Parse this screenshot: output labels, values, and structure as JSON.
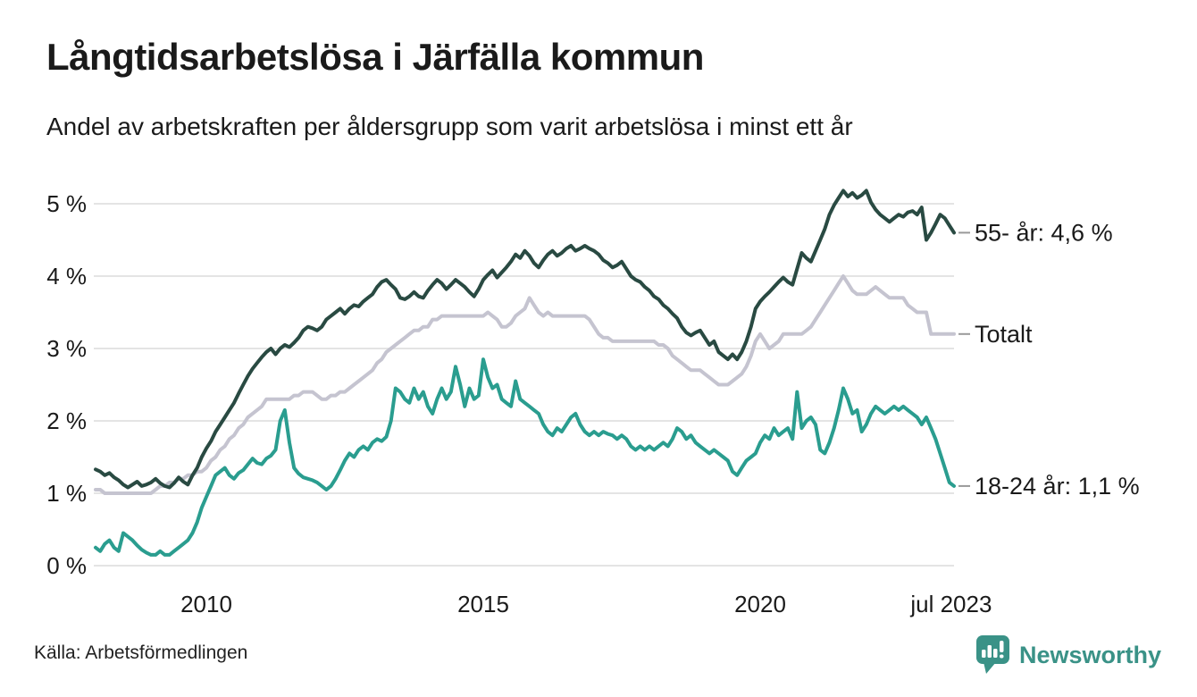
{
  "title": "Långtidsarbetslösa i Järfälla kommun",
  "subtitle": "Andel av arbetskraften per åldersgrupp som varit arbetslösa i minst ett år",
  "source": "Källa: Arbetsförmedlingen",
  "logo": {
    "text": "Newsworthy",
    "color": "#3a9287"
  },
  "chart_data": {
    "type": "line",
    "title": "Långtidsarbetslösa i Järfälla kommun",
    "subtitle": "Andel av arbetskraften per åldersgrupp som varit arbetslösa i minst ett år",
    "unit": "%",
    "x_start": "2008-01",
    "x_end": "2023-07",
    "x_interval": "monthly",
    "ylim": [
      0,
      5.5
    ],
    "grid": "horizontal",
    "grid_color": "#e4e4e4",
    "label_color": "#1a1a1a",
    "connector_color": "#999999",
    "y_ticks": [
      "0 %",
      "1 %",
      "2 %",
      "3 %",
      "4 %",
      "5 %"
    ],
    "x_ticks": [
      {
        "label": "2010",
        "t": 2010.0
      },
      {
        "label": "2015",
        "t": 2015.0
      },
      {
        "label": "2020",
        "t": 2020.0
      },
      {
        "label": "jul 2023",
        "t": 2023.45
      }
    ],
    "series": [
      {
        "id": "totalt",
        "name": "Totalt",
        "end_label": "Totalt",
        "end_value": 3.2,
        "color": "#c5c4d0",
        "values": [
          1.05,
          1.05,
          1.0,
          1.0,
          1.0,
          1.0,
          1.0,
          1.0,
          1.0,
          1.0,
          1.0,
          1.0,
          1.0,
          1.05,
          1.1,
          1.1,
          1.15,
          1.15,
          1.2,
          1.2,
          1.25,
          1.25,
          1.3,
          1.3,
          1.35,
          1.45,
          1.5,
          1.6,
          1.65,
          1.75,
          1.8,
          1.9,
          1.95,
          2.05,
          2.1,
          2.15,
          2.2,
          2.3,
          2.3,
          2.3,
          2.3,
          2.3,
          2.3,
          2.35,
          2.35,
          2.4,
          2.4,
          2.4,
          2.35,
          2.3,
          2.3,
          2.35,
          2.35,
          2.4,
          2.4,
          2.45,
          2.5,
          2.55,
          2.6,
          2.65,
          2.7,
          2.8,
          2.85,
          2.95,
          3.0,
          3.05,
          3.1,
          3.15,
          3.2,
          3.25,
          3.25,
          3.3,
          3.3,
          3.4,
          3.4,
          3.45,
          3.45,
          3.45,
          3.45,
          3.45,
          3.45,
          3.45,
          3.45,
          3.45,
          3.45,
          3.5,
          3.45,
          3.4,
          3.3,
          3.3,
          3.35,
          3.45,
          3.5,
          3.55,
          3.7,
          3.6,
          3.5,
          3.45,
          3.5,
          3.45,
          3.45,
          3.45,
          3.45,
          3.45,
          3.45,
          3.45,
          3.45,
          3.4,
          3.3,
          3.2,
          3.15,
          3.15,
          3.1,
          3.1,
          3.1,
          3.1,
          3.1,
          3.1,
          3.1,
          3.1,
          3.1,
          3.1,
          3.05,
          3.05,
          3.0,
          2.9,
          2.85,
          2.8,
          2.75,
          2.7,
          2.7,
          2.7,
          2.65,
          2.6,
          2.55,
          2.5,
          2.5,
          2.5,
          2.55,
          2.6,
          2.65,
          2.75,
          2.9,
          3.1,
          3.2,
          3.1,
          3.0,
          3.05,
          3.1,
          3.2,
          3.2,
          3.2,
          3.2,
          3.2,
          3.25,
          3.3,
          3.4,
          3.5,
          3.6,
          3.7,
          3.8,
          3.9,
          4.0,
          3.9,
          3.8,
          3.75,
          3.75,
          3.75,
          3.8,
          3.85,
          3.8,
          3.75,
          3.7,
          3.7,
          3.7,
          3.7,
          3.6,
          3.55,
          3.5,
          3.5,
          3.5,
          3.2,
          3.2,
          3.2,
          3.2,
          3.2,
          3.2
        ]
      },
      {
        "id": "55-ar",
        "name": "55- år",
        "end_label": "55- år: 4,6 %",
        "end_value": 4.6,
        "color": "#294a42",
        "values": [
          1.33,
          1.3,
          1.25,
          1.28,
          1.22,
          1.18,
          1.12,
          1.08,
          1.12,
          1.16,
          1.1,
          1.12,
          1.15,
          1.2,
          1.14,
          1.1,
          1.08,
          1.14,
          1.22,
          1.16,
          1.12,
          1.25,
          1.35,
          1.5,
          1.62,
          1.72,
          1.85,
          1.95,
          2.05,
          2.15,
          2.25,
          2.38,
          2.5,
          2.62,
          2.72,
          2.8,
          2.88,
          2.95,
          3.0,
          2.92,
          3.0,
          3.05,
          3.02,
          3.08,
          3.15,
          3.25,
          3.3,
          3.28,
          3.25,
          3.3,
          3.4,
          3.45,
          3.5,
          3.55,
          3.48,
          3.55,
          3.6,
          3.58,
          3.65,
          3.7,
          3.75,
          3.85,
          3.92,
          3.95,
          3.88,
          3.82,
          3.7,
          3.68,
          3.72,
          3.78,
          3.72,
          3.7,
          3.8,
          3.88,
          3.95,
          3.9,
          3.82,
          3.88,
          3.95,
          3.9,
          3.85,
          3.78,
          3.72,
          3.82,
          3.95,
          4.02,
          4.08,
          3.98,
          4.05,
          4.12,
          4.2,
          4.3,
          4.25,
          4.35,
          4.28,
          4.18,
          4.12,
          4.22,
          4.3,
          4.35,
          4.28,
          4.32,
          4.38,
          4.42,
          4.35,
          4.38,
          4.42,
          4.38,
          4.35,
          4.3,
          4.22,
          4.18,
          4.12,
          4.15,
          4.2,
          4.1,
          4.0,
          3.95,
          3.92,
          3.85,
          3.8,
          3.72,
          3.68,
          3.6,
          3.55,
          3.48,
          3.42,
          3.3,
          3.22,
          3.18,
          3.22,
          3.25,
          3.15,
          3.05,
          3.1,
          2.95,
          2.9,
          2.85,
          2.92,
          2.85,
          2.95,
          3.1,
          3.3,
          3.55,
          3.65,
          3.72,
          3.78,
          3.85,
          3.92,
          3.98,
          3.92,
          3.88,
          4.1,
          4.32,
          4.25,
          4.2,
          4.35,
          4.5,
          4.65,
          4.85,
          4.98,
          5.08,
          5.18,
          5.1,
          5.15,
          5.08,
          5.12,
          5.18,
          5.02,
          4.92,
          4.85,
          4.8,
          4.75,
          4.8,
          4.85,
          4.82,
          4.88,
          4.9,
          4.85,
          4.95,
          4.5,
          4.6,
          4.72,
          4.85,
          4.8,
          4.7,
          4.6
        ]
      },
      {
        "id": "18-24-ar",
        "name": "18-24 år",
        "end_label": "18-24 år: 1,1 %",
        "end_value": 1.1,
        "color": "#2a9d8f",
        "values": [
          0.25,
          0.2,
          0.3,
          0.35,
          0.25,
          0.2,
          0.45,
          0.4,
          0.35,
          0.28,
          0.22,
          0.18,
          0.15,
          0.15,
          0.2,
          0.15,
          0.15,
          0.2,
          0.25,
          0.3,
          0.35,
          0.45,
          0.6,
          0.8,
          0.95,
          1.1,
          1.25,
          1.3,
          1.35,
          1.25,
          1.2,
          1.28,
          1.32,
          1.4,
          1.48,
          1.42,
          1.4,
          1.48,
          1.52,
          1.6,
          2.0,
          2.15,
          1.7,
          1.35,
          1.27,
          1.22,
          1.2,
          1.18,
          1.15,
          1.1,
          1.05,
          1.1,
          1.2,
          1.32,
          1.45,
          1.55,
          1.5,
          1.6,
          1.65,
          1.6,
          1.7,
          1.75,
          1.72,
          1.78,
          2.0,
          2.45,
          2.4,
          2.3,
          2.25,
          2.45,
          2.3,
          2.4,
          2.2,
          2.1,
          2.3,
          2.45,
          2.3,
          2.4,
          2.75,
          2.5,
          2.2,
          2.45,
          2.3,
          2.35,
          2.85,
          2.6,
          2.45,
          2.5,
          2.3,
          2.25,
          2.2,
          2.55,
          2.3,
          2.25,
          2.2,
          2.15,
          2.1,
          1.95,
          1.85,
          1.8,
          1.9,
          1.85,
          1.95,
          2.05,
          2.1,
          1.95,
          1.85,
          1.8,
          1.85,
          1.8,
          1.85,
          1.82,
          1.8,
          1.75,
          1.8,
          1.75,
          1.65,
          1.6,
          1.65,
          1.6,
          1.65,
          1.6,
          1.65,
          1.7,
          1.65,
          1.75,
          1.9,
          1.85,
          1.75,
          1.8,
          1.7,
          1.65,
          1.6,
          1.55,
          1.6,
          1.55,
          1.5,
          1.45,
          1.3,
          1.25,
          1.35,
          1.45,
          1.5,
          1.55,
          1.7,
          1.8,
          1.75,
          1.9,
          1.8,
          1.85,
          1.9,
          1.75,
          2.4,
          1.9,
          2.0,
          2.05,
          1.95,
          1.6,
          1.55,
          1.7,
          1.9,
          2.15,
          2.45,
          2.3,
          2.1,
          2.15,
          1.85,
          1.95,
          2.1,
          2.2,
          2.15,
          2.1,
          2.15,
          2.2,
          2.15,
          2.2,
          2.15,
          2.1,
          2.05,
          1.95,
          2.05,
          1.9,
          1.75,
          1.55,
          1.35,
          1.15,
          1.1
        ]
      }
    ]
  }
}
